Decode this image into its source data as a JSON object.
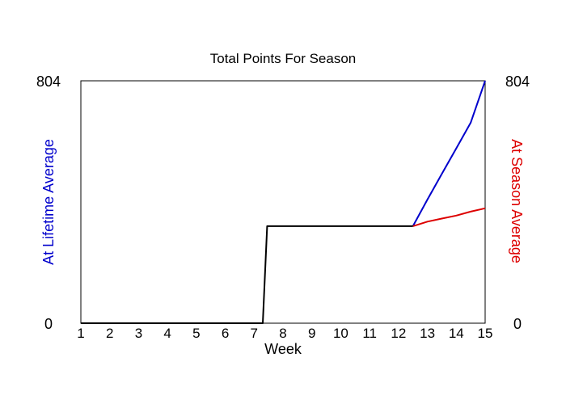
{
  "chart_data": {
    "type": "line",
    "title": "Total Points For Season",
    "xlabel": "Week",
    "ylabel_left": "At Lifetime Average",
    "ylabel_right": "At Season Average",
    "xlim": [
      1,
      15
    ],
    "ylim": [
      0,
      804
    ],
    "x_ticks": [
      "1",
      "2",
      "3",
      "4",
      "5",
      "6",
      "7",
      "8",
      "9",
      "10",
      "11",
      "12",
      "13",
      "14",
      "15"
    ],
    "y_min_label": "0",
    "y_max_label": "804",
    "series": [
      {
        "name": "At Lifetime Average",
        "color": "#0000cc",
        "x": [
          12.5,
          13,
          13.5,
          14,
          14.5,
          15
        ],
        "y": [
          322,
          410,
          495,
          580,
          665,
          804
        ]
      },
      {
        "name": "At Season Average",
        "color": "#dd0000",
        "x": [
          12.5,
          13,
          13.5,
          14,
          14.5,
          15
        ],
        "y": [
          322,
          337,
          347,
          357,
          370,
          381
        ]
      },
      {
        "name": "",
        "color": "#000000",
        "x": [
          1,
          7.3,
          7.45,
          12.5
        ],
        "y": [
          0,
          0,
          322,
          322
        ]
      }
    ]
  }
}
